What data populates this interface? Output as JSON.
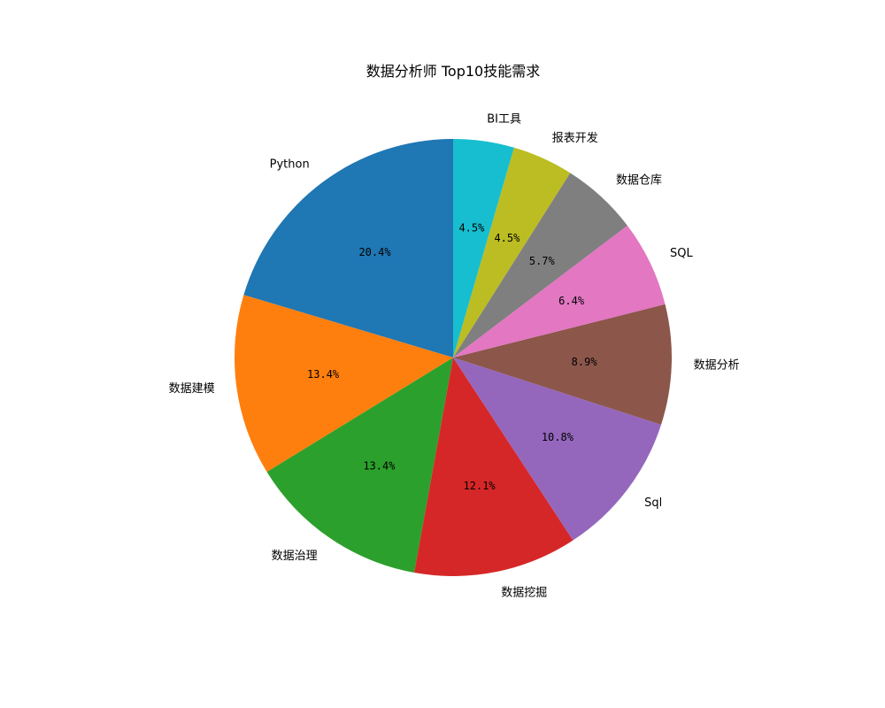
{
  "chart_data": {
    "type": "pie",
    "title": "数据分析师 Top10技能需求",
    "start_angle_deg": 90,
    "direction": "counterclockwise",
    "slices": [
      {
        "label": "Python",
        "value": 20.4,
        "pct_label": "20.4%",
        "color": "#1f77b4"
      },
      {
        "label": "数据建模",
        "value": 13.4,
        "pct_label": "13.4%",
        "color": "#ff7f0e"
      },
      {
        "label": "数据治理",
        "value": 13.4,
        "pct_label": "13.4%",
        "color": "#2ca02c"
      },
      {
        "label": "数据挖掘",
        "value": 12.1,
        "pct_label": "12.1%",
        "color": "#d62728"
      },
      {
        "label": "Sql",
        "value": 10.8,
        "pct_label": "10.8%",
        "color": "#9467bd"
      },
      {
        "label": "数据分析",
        "value": 8.9,
        "pct_label": "8.9%",
        "color": "#8c564b"
      },
      {
        "label": "SQL",
        "value": 6.4,
        "pct_label": "6.4%",
        "color": "#e377c2"
      },
      {
        "label": "数据仓库",
        "value": 5.7,
        "pct_label": "5.7%",
        "color": "#7f7f7f"
      },
      {
        "label": "报表开发",
        "value": 4.5,
        "pct_label": "4.5%",
        "color": "#bcbd22"
      },
      {
        "label": "BI工具",
        "value": 4.5,
        "pct_label": "4.5%",
        "color": "#17becf"
      }
    ]
  }
}
